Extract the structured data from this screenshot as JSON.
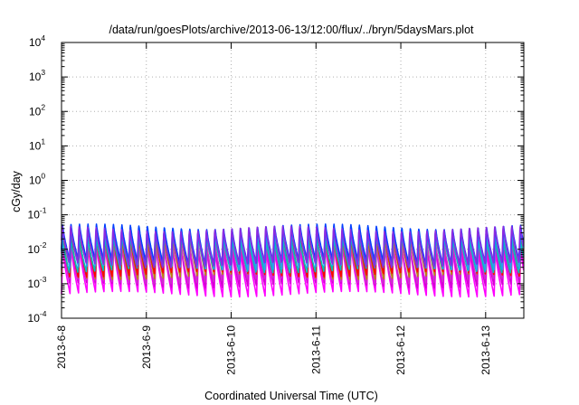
{
  "chart_data": {
    "type": "line",
    "title": "/data/run/goesPlots/archive/2013-06-13/12:00/flux/../bryn/5daysMars.plot",
    "xlabel": "Coordinated Universal Time (UTC)",
    "ylabel": "cGy/day",
    "yscale": "log",
    "ylim": [
      0.0001,
      10000
    ],
    "xlim_days_from_2013_6_8": [
      0,
      5.45
    ],
    "grid": true,
    "legend": "none",
    "x_tick_labels": [
      "2013-6-8",
      "2013-6-9",
      "2013-6-10",
      "2013-6-11",
      "2013-6-12",
      "2013-6-13"
    ],
    "y_tick_base": "10",
    "y_tick_exponents": [
      "-4",
      "-3",
      "-2",
      "-1",
      "0",
      "1",
      "2",
      "3",
      "4"
    ],
    "oscillation_period_days": 0.1,
    "series": [
      {
        "color": "#ff00ff",
        "peak": 0.012,
        "trough": 0.0005
      },
      {
        "color": "#d400d4",
        "peak": 0.018,
        "trough": 0.0009
      },
      {
        "color": "#cc33cc",
        "peak": 0.022,
        "trough": 0.0012
      },
      {
        "color": "#b8860b",
        "peak": 0.028,
        "trough": 0.0016
      },
      {
        "color": "#ff0000",
        "peak": 0.034,
        "trough": 0.0019
      },
      {
        "color": "#00c0c0",
        "peak": 0.03,
        "trough": 0.0025
      },
      {
        "color": "#2a9df4",
        "peak": 0.042,
        "trough": 0.003
      },
      {
        "color": "#0040ff",
        "peak": 0.052,
        "trough": 0.0042
      },
      {
        "color": "#8a2be2",
        "peak": 0.045,
        "trough": 0.0035
      }
    ]
  }
}
